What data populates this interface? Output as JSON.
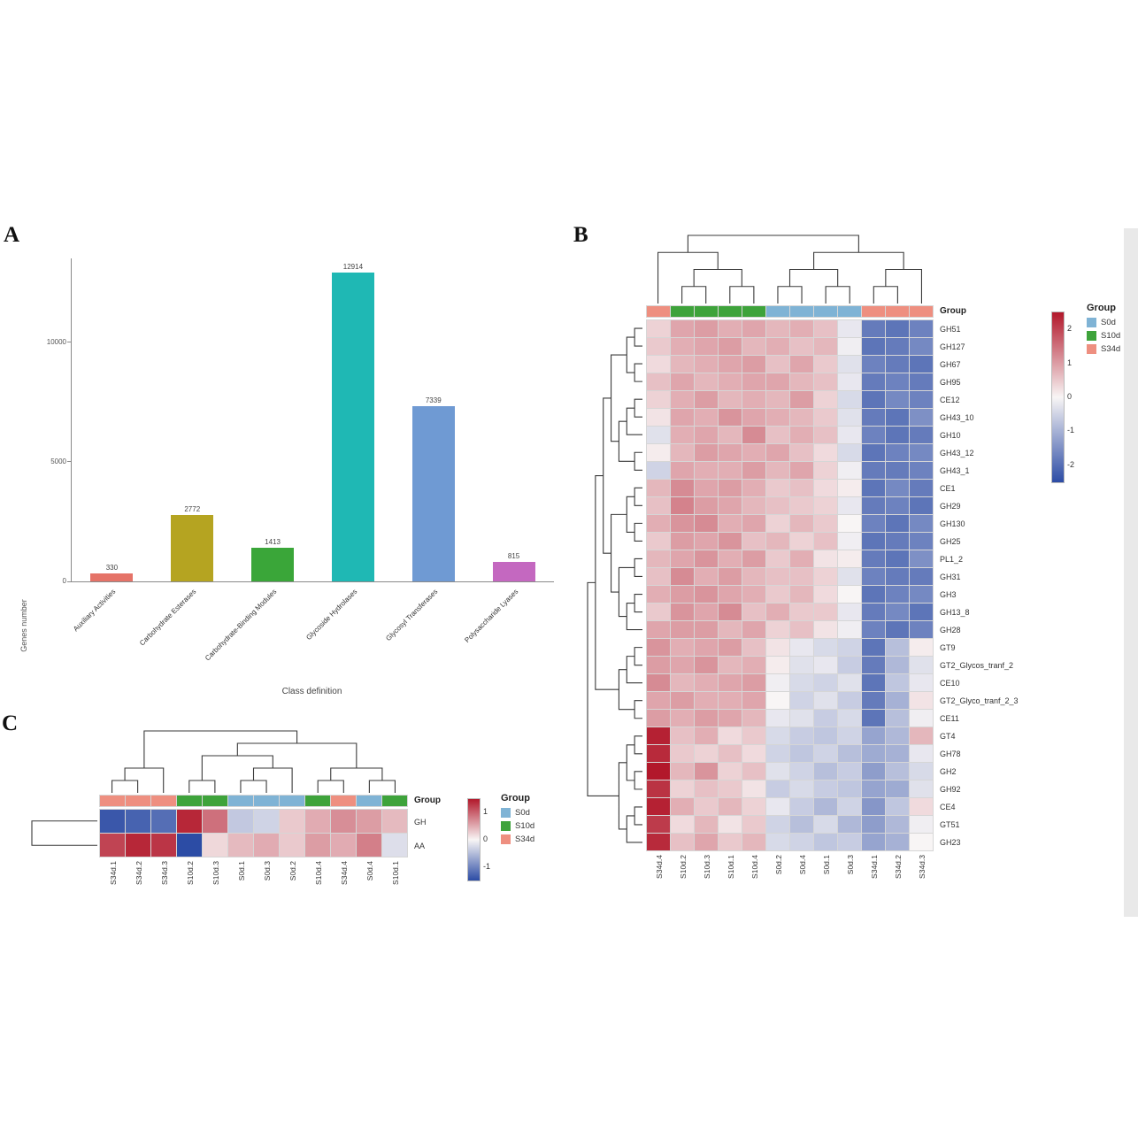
{
  "panels": {
    "a": {
      "label": "A"
    },
    "b": {
      "label": "B"
    },
    "c": {
      "label": "C"
    }
  },
  "labels": {
    "group": "Group"
  },
  "groups": {
    "S0d": "#7fb3d5",
    "S10d": "#3ea33b",
    "S34d": "#ee8f80"
  },
  "heatmap_palette": {
    "positive": "#b2182b",
    "zero": "#f8f5f5",
    "negative": "#2c4ca5"
  },
  "chart_data": [
    {
      "type": "bar",
      "title": "",
      "xlabel": "Class definition",
      "ylabel": "Genes number",
      "categories": [
        "Auxiliary Activities",
        "Carbohydrate Esterases",
        "Carbohydrate-Binding Modules",
        "Glycoside Hydrolases",
        "Glycosyl Transferases",
        "Polysaccharide Lyases"
      ],
      "values": [
        330,
        2772,
        1413,
        12914,
        7339,
        815
      ],
      "bar_colors": [
        "#e57368",
        "#b5a421",
        "#3aa639",
        "#1fb8b4",
        "#6f9ad3",
        "#c468c0"
      ],
      "yticks": [
        0,
        5000,
        10000
      ],
      "ylim": [
        0,
        13500
      ],
      "grid": false,
      "legend_position": "none"
    },
    {
      "type": "heatmap",
      "name": "panel-b-heatmap",
      "legend_title": "Group",
      "colorbar_ticks": [
        2,
        1,
        0,
        -1,
        -2
      ],
      "colorbar_range": [
        2.5,
        -2.5
      ],
      "legend_groups": [
        "S0d",
        "S10d",
        "S34d"
      ],
      "columns": [
        "S34d.4",
        "S10d.2",
        "S10d.3",
        "S10d.1",
        "S10d.4",
        "S0d.2",
        "S0d.4",
        "S0d.1",
        "S0d.3",
        "S34d.1",
        "S34d.2",
        "S34d.3"
      ],
      "col_groups": [
        "S34d",
        "S10d",
        "S10d",
        "S10d",
        "S10d",
        "S0d",
        "S0d",
        "S0d",
        "S0d",
        "S34d",
        "S34d",
        "S34d"
      ],
      "rows": [
        "GH51",
        "GH127",
        "GH67",
        "GH95",
        "CE12",
        "GH43_10",
        "GH10",
        "GH43_12",
        "GH43_1",
        "CE1",
        "GH29",
        "GH130",
        "GH25",
        "PL1_2",
        "GH31",
        "GH3",
        "GH13_8",
        "GH28",
        "GT9",
        "GT2_Glycos_tranf_2",
        "CE10",
        "GT2_Glyco_tranf_2_3",
        "CE11",
        "GT4",
        "GH78",
        "GH2",
        "GH92",
        "CE4",
        "GT51",
        "GH23"
      ],
      "values": [
        [
          0.4,
          0.9,
          1.0,
          0.8,
          0.9,
          0.7,
          0.8,
          0.6,
          -0.2,
          -1.8,
          -1.9,
          -1.7
        ],
        [
          0.5,
          0.8,
          0.9,
          1.0,
          0.7,
          0.8,
          0.6,
          0.7,
          -0.1,
          -1.9,
          -1.8,
          -1.6
        ],
        [
          0.3,
          0.7,
          0.8,
          0.9,
          1.0,
          0.6,
          0.9,
          0.5,
          -0.3,
          -1.7,
          -1.8,
          -1.9
        ],
        [
          0.6,
          0.9,
          0.7,
          0.8,
          0.9,
          0.9,
          0.7,
          0.6,
          -0.2,
          -1.8,
          -1.7,
          -1.8
        ],
        [
          0.4,
          0.8,
          1.0,
          0.7,
          0.8,
          0.7,
          1.0,
          0.4,
          -0.4,
          -1.9,
          -1.6,
          -1.7
        ],
        [
          0.2,
          0.9,
          0.8,
          1.1,
          0.9,
          0.8,
          0.7,
          0.5,
          -0.3,
          -1.8,
          -1.9,
          -1.5
        ],
        [
          -0.3,
          0.8,
          0.9,
          0.7,
          1.2,
          0.6,
          0.8,
          0.6,
          -0.2,
          -1.7,
          -1.9,
          -1.8
        ],
        [
          0.1,
          0.7,
          1.0,
          0.9,
          0.8,
          0.9,
          0.6,
          0.3,
          -0.4,
          -1.9,
          -1.7,
          -1.6
        ],
        [
          -0.5,
          0.9,
          0.8,
          0.8,
          1.0,
          0.7,
          0.9,
          0.4,
          -0.1,
          -1.8,
          -1.8,
          -1.7
        ],
        [
          0.7,
          1.2,
          0.9,
          1.0,
          0.8,
          0.5,
          0.6,
          0.3,
          0.1,
          -1.9,
          -1.6,
          -1.8
        ],
        [
          0.6,
          1.3,
          1.0,
          0.9,
          0.7,
          0.6,
          0.5,
          0.4,
          -0.2,
          -1.8,
          -1.7,
          -1.9
        ],
        [
          0.8,
          1.1,
          1.2,
          0.8,
          0.9,
          0.4,
          0.7,
          0.5,
          0.0,
          -1.7,
          -1.9,
          -1.6
        ],
        [
          0.5,
          1.0,
          0.9,
          1.1,
          0.6,
          0.7,
          0.4,
          0.6,
          -0.1,
          -1.9,
          -1.8,
          -1.7
        ],
        [
          0.7,
          0.9,
          1.1,
          0.8,
          1.0,
          0.5,
          0.8,
          0.2,
          0.1,
          -1.8,
          -1.9,
          -1.5
        ],
        [
          0.6,
          1.2,
          0.8,
          1.0,
          0.7,
          0.6,
          0.6,
          0.4,
          -0.3,
          -1.7,
          -1.8,
          -1.8
        ],
        [
          0.8,
          1.0,
          1.1,
          0.9,
          0.8,
          0.5,
          0.7,
          0.3,
          0.0,
          -1.9,
          -1.7,
          -1.6
        ],
        [
          0.5,
          1.1,
          0.9,
          1.2,
          0.6,
          0.8,
          0.5,
          0.5,
          -0.2,
          -1.8,
          -1.6,
          -1.9
        ],
        [
          0.9,
          1.0,
          1.0,
          0.7,
          0.9,
          0.4,
          0.6,
          0.2,
          -0.1,
          -1.7,
          -1.9,
          -1.7
        ],
        [
          1.1,
          0.8,
          0.9,
          1.0,
          0.6,
          0.2,
          -0.2,
          -0.4,
          -0.5,
          -1.9,
          -0.8,
          0.1
        ],
        [
          1.0,
          0.9,
          1.1,
          0.7,
          0.8,
          0.1,
          -0.3,
          -0.2,
          -0.6,
          -1.8,
          -0.9,
          -0.3
        ],
        [
          1.2,
          0.7,
          0.8,
          0.9,
          1.0,
          -0.1,
          -0.4,
          -0.5,
          -0.3,
          -1.9,
          -0.7,
          -0.2
        ],
        [
          0.9,
          1.0,
          0.8,
          0.8,
          0.9,
          0.0,
          -0.5,
          -0.3,
          -0.6,
          -1.8,
          -1.0,
          0.2
        ],
        [
          1.0,
          0.8,
          1.0,
          0.9,
          0.7,
          -0.2,
          -0.3,
          -0.6,
          -0.4,
          -1.9,
          -0.8,
          -0.1
        ],
        [
          2.4,
          0.6,
          0.8,
          0.3,
          0.5,
          -0.4,
          -0.6,
          -0.7,
          -0.5,
          -1.2,
          -0.9,
          0.7
        ],
        [
          2.3,
          0.5,
          0.4,
          0.6,
          0.3,
          -0.5,
          -0.7,
          -0.5,
          -0.8,
          -1.1,
          -1.0,
          -0.2
        ],
        [
          2.5,
          0.7,
          1.1,
          0.4,
          0.6,
          -0.3,
          -0.5,
          -0.8,
          -0.6,
          -1.3,
          -0.8,
          -0.4
        ],
        [
          2.2,
          0.4,
          0.6,
          0.5,
          0.2,
          -0.6,
          -0.4,
          -0.6,
          -0.7,
          -1.2,
          -1.1,
          -0.3
        ],
        [
          2.4,
          0.8,
          0.5,
          0.7,
          0.4,
          -0.2,
          -0.6,
          -0.9,
          -0.5,
          -1.4,
          -0.7,
          0.3
        ],
        [
          2.1,
          0.3,
          0.7,
          0.2,
          0.5,
          -0.5,
          -0.8,
          -0.4,
          -0.9,
          -1.3,
          -0.9,
          -0.1
        ],
        [
          2.3,
          0.6,
          0.9,
          0.5,
          0.7,
          -0.4,
          -0.5,
          -0.7,
          -0.6,
          -1.2,
          -1.0,
          0.0
        ]
      ],
      "col_tree": [
        [
          0,
          [
            [
              1,
              2
            ],
            [
              3,
              4
            ]
          ]
        ],
        [
          [
            [
              5,
              6
            ],
            [
              7,
              8
            ]
          ],
          [
            [
              9,
              10
            ],
            11
          ]
        ]
      ],
      "row_tree": [
        [
          [
            [
              [
                [
                  0,
                  1
                ],
                [
                  2,
                  3
                ]
              ],
              [
                [
                  [
                    4,
                    5
                  ],
                  6
                ],
                [
                  7,
                  8
                ]
              ]
            ],
            [
              [
                [
                  9,
                  10
                ],
                [
                  11,
                  12
                ]
              ],
              [
                [
                  13,
                  14
                ],
                [
                  [
                    15,
                    16
                  ],
                  17
                ]
              ]
            ]
          ],
          [
            [
              [
                18,
                19
              ],
              20
            ],
            [
              21,
              22
            ]
          ]
        ],
        [
          [
            [
              23,
              24
            ],
            [
              25,
              26
            ]
          ],
          [
            [
              27,
              28
            ],
            29
          ]
        ]
      ]
    },
    {
      "type": "heatmap",
      "name": "panel-c-heatmap",
      "legend_title": "Group",
      "colorbar_ticks": [
        1,
        0,
        -1
      ],
      "colorbar_range": [
        1.5,
        -1.5
      ],
      "legend_groups": [
        "S0d",
        "S10d",
        "S34d"
      ],
      "columns": [
        "S34d.1",
        "S34d.2",
        "S34d.3",
        "S10d.2",
        "S10d.3",
        "S0d.1",
        "S0d.3",
        "S0d.2",
        "S10d.4",
        "S34d.4",
        "S0d.4",
        "S10d.1"
      ],
      "col_groups": [
        "S34d",
        "S34d",
        "S34d",
        "S10d",
        "S10d",
        "S0d",
        "S0d",
        "S0d",
        "S10d",
        "S34d",
        "S0d",
        "S10d"
      ],
      "rows": [
        "GH",
        "AA"
      ],
      "values": [
        [
          -1.4,
          -1.3,
          -1.2,
          1.4,
          0.9,
          -0.4,
          -0.3,
          0.3,
          0.5,
          0.7,
          0.6,
          0.4
        ],
        [
          1.2,
          1.4,
          1.3,
          -1.5,
          0.2,
          0.4,
          0.5,
          0.3,
          0.6,
          0.5,
          0.8,
          -0.2
        ]
      ],
      "col_tree": [
        [
          [
            0,
            1
          ],
          2
        ],
        [
          [
            [
              3,
              4
            ],
            [
              [
                5,
                6
              ],
              7
            ]
          ],
          [
            [
              8,
              9
            ],
            [
              10,
              11
            ]
          ]
        ]
      ],
      "row_tree": [
        0,
        1
      ]
    }
  ]
}
